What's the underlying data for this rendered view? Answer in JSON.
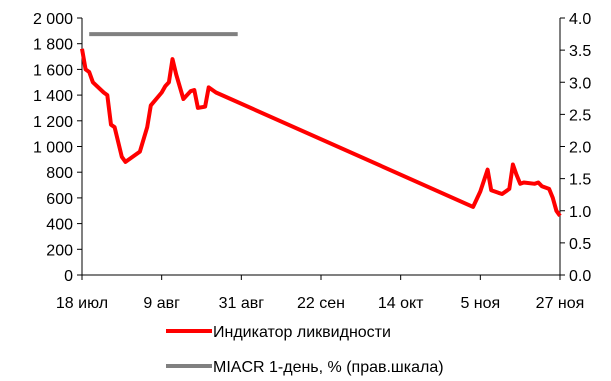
{
  "chart_data": {
    "type": "line",
    "x_ticks": [
      "18 июл",
      "9 авг",
      "31 авг",
      "22 сен",
      "14 окт",
      "5 ноя",
      "27 ноя"
    ],
    "y_left": {
      "min": 0,
      "max": 2000,
      "step": 200,
      "tick_labels": [
        "0",
        "200",
        "400",
        "600",
        "800",
        "1 000",
        "1 200",
        "1 400",
        "1 600",
        "1 800",
        "2 000"
      ]
    },
    "y_right": {
      "min": 0,
      "max": 4,
      "step": 0.5,
      "tick_labels": [
        "0.0",
        "0.5",
        "1.0",
        "1.5",
        "2.0",
        "2.5",
        "3.0",
        "3.5",
        "4.0"
      ]
    },
    "series": [
      {
        "name": "Индикатор ликвидности",
        "axis": "left",
        "color": "#ff0000",
        "points": [
          [
            "2018-07-18",
            1760
          ],
          [
            "2018-07-19",
            1600
          ],
          [
            "2018-07-20",
            1580
          ],
          [
            "2018-07-21",
            1500
          ],
          [
            "2018-07-24",
            1420
          ],
          [
            "2018-07-25",
            1400
          ],
          [
            "2018-07-26",
            1170
          ],
          [
            "2018-07-27",
            1150
          ],
          [
            "2018-07-29",
            920
          ],
          [
            "2018-07-30",
            880
          ],
          [
            "2018-08-03",
            960
          ],
          [
            "2018-08-05",
            1150
          ],
          [
            "2018-08-06",
            1320
          ],
          [
            "2018-08-09",
            1420
          ],
          [
            "2018-08-10",
            1470
          ],
          [
            "2018-08-11",
            1500
          ],
          [
            "2018-08-12",
            1680
          ],
          [
            "2018-08-13",
            1560
          ],
          [
            "2018-08-15",
            1370
          ],
          [
            "2018-08-17",
            1430
          ],
          [
            "2018-08-18",
            1440
          ],
          [
            "2018-08-19",
            1300
          ],
          [
            "2018-08-21",
            1310
          ],
          [
            "2018-08-22",
            1460
          ],
          [
            "2018-08-24",
            1420
          ],
          [
            "2018-11-03",
            530
          ],
          [
            "2018-11-05",
            650
          ],
          [
            "2018-11-07",
            820
          ],
          [
            "2018-11-08",
            660
          ],
          [
            "2018-11-10",
            640
          ],
          [
            "2018-11-11",
            630
          ],
          [
            "2018-11-13",
            670
          ],
          [
            "2018-11-14",
            860
          ],
          [
            "2018-11-15",
            780
          ],
          [
            "2018-11-16",
            710
          ],
          [
            "2018-11-17",
            720
          ],
          [
            "2018-11-20",
            710
          ],
          [
            "2018-11-21",
            720
          ],
          [
            "2018-11-22",
            690
          ],
          [
            "2018-11-24",
            670
          ],
          [
            "2018-11-25",
            600
          ],
          [
            "2018-11-26",
            500
          ],
          [
            "2018-11-27",
            460
          ]
        ]
      },
      {
        "name": "MIACR 1-день, % (прав.шкала)",
        "axis": "right",
        "color": "#808080",
        "points": [
          [
            "2018-07-20",
            3.75
          ],
          [
            "2018-08-30",
            3.75
          ]
        ]
      }
    ],
    "grid": false,
    "legend_position": "bottom"
  }
}
